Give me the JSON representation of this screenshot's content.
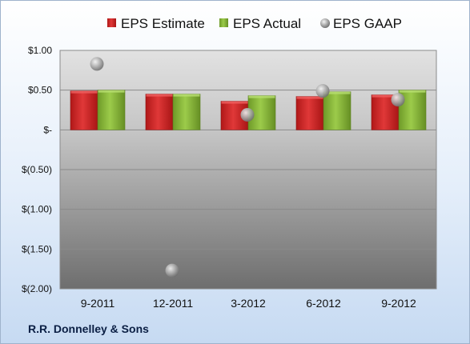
{
  "company": "R.R. Donnelley & Sons",
  "colors": {
    "estimate": "#d42a2a",
    "actual": "#8cbb3c",
    "gaap": "#a9a9a9"
  },
  "chart_data": {
    "type": "bar",
    "title": "",
    "xlabel": "",
    "ylabel": "",
    "ylim": [
      -2.0,
      1.0
    ],
    "y_ticks": [
      1.0,
      0.5,
      0.0,
      -0.5,
      -1.0,
      -1.5,
      -2.0
    ],
    "y_tick_labels": [
      "$1.00",
      "$0.50",
      "$-",
      "$(0.50)",
      "$(1.00)",
      "$(1.50)",
      "$(2.00)"
    ],
    "categories": [
      "9-2011",
      "12-2011",
      "3-2012",
      "6-2012",
      "9-2012"
    ],
    "series": [
      {
        "name": "EPS Estimate",
        "type": "bar",
        "values": [
          0.49,
          0.45,
          0.36,
          0.42,
          0.44
        ]
      },
      {
        "name": "EPS Actual",
        "type": "bar",
        "values": [
          0.5,
          0.45,
          0.43,
          0.48,
          0.5
        ]
      },
      {
        "name": "EPS GAAP",
        "type": "scatter",
        "values": [
          0.83,
          -1.77,
          0.19,
          0.49,
          0.38
        ]
      }
    ],
    "legend_position": "top",
    "grid": true
  }
}
